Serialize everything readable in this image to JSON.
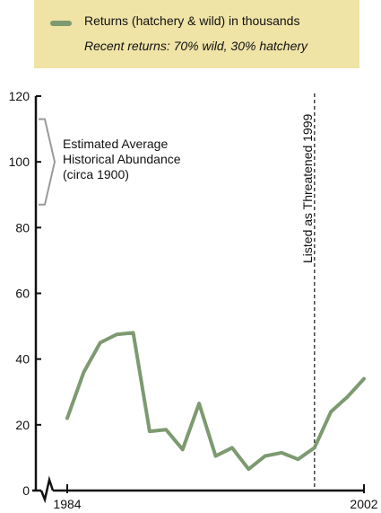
{
  "legend": {
    "series_label": "Returns (hatchery & wild) in thousands",
    "note": "Recent returns:  70% wild, 30% hatchery",
    "swatch_color": "#7d9a70"
  },
  "annotations": {
    "historical_lines": [
      "Estimated Average",
      "Historical Abundance",
      "(circa 1900)"
    ],
    "historical_range": [
      87,
      113
    ],
    "threatened_label": "Listed as Threatened 1999",
    "threatened_year": 1999
  },
  "chart_data": {
    "type": "line",
    "title": "",
    "xlabel": "",
    "ylabel": "",
    "xlim": [
      1984,
      2002
    ],
    "ylim": [
      0,
      120
    ],
    "y_ticks": [
      0,
      20,
      40,
      60,
      80,
      100,
      120
    ],
    "x_ticks": [
      1984,
      2002
    ],
    "grid": false,
    "series": [
      {
        "name": "Returns (hatchery & wild) in thousands",
        "color": "#7d9a70",
        "x": [
          1984,
          1985,
          1986,
          1987,
          1988,
          1989,
          1990,
          1991,
          1992,
          1993,
          1994,
          1995,
          1996,
          1997,
          1998,
          1999,
          2000,
          2001,
          2002
        ],
        "values": [
          22,
          36,
          45,
          47.5,
          48,
          18,
          18.5,
          12.5,
          26.5,
          10.5,
          13,
          6.5,
          10.5,
          11.5,
          9.5,
          13,
          24,
          28.5,
          34
        ]
      }
    ]
  }
}
